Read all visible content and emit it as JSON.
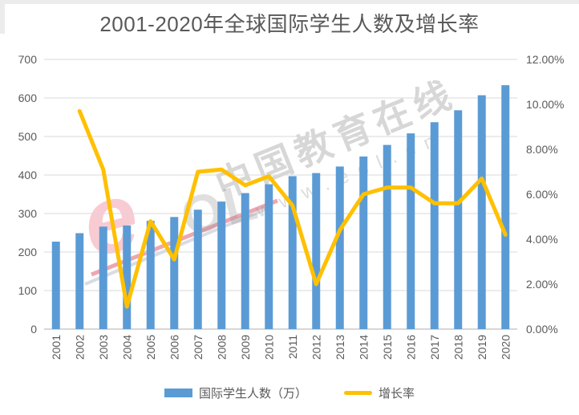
{
  "title": "2001-2020年全球国际学生人数及增长率",
  "watermark": {
    "brand_text": "中国教育在线",
    "url_text": "www.eol.cn",
    "logo_text_primary": "e",
    "logo_text_secondary": "OL"
  },
  "colors": {
    "bar": "#5B9BD5",
    "line": "#FFC000",
    "grid": "#D9D9D9",
    "axis_line": "#BFBFBF",
    "axis_text": "#595959",
    "title_text": "#595959"
  },
  "chart_data": {
    "type": "bar",
    "subtype": "combo-bar-line",
    "title": "2001-2020年全球国际学生人数及增长率",
    "categories": [
      "2001",
      "2002",
      "2003",
      "2004",
      "2005",
      "2006",
      "2007",
      "2008",
      "2009",
      "2010",
      "2011",
      "2012",
      "2013",
      "2014",
      "2015",
      "2016",
      "2017",
      "2018",
      "2019",
      "2020"
    ],
    "series": [
      {
        "name": "国际学生人数（万）",
        "type": "bar",
        "axis": "left",
        "color": "#5B9BD5",
        "values": [
          227,
          249,
          266,
          269,
          281,
          291,
          310,
          331,
          353,
          376,
          397,
          405,
          422,
          448,
          478,
          508,
          537,
          568,
          607,
          633
        ]
      },
      {
        "name": "增长率",
        "type": "line",
        "axis": "right",
        "color": "#FFC000",
        "unit": "%",
        "values": [
          null,
          9.7,
          7.1,
          1.0,
          4.8,
          3.1,
          7.0,
          7.1,
          6.4,
          6.8,
          5.5,
          2.0,
          4.4,
          6.0,
          6.3,
          6.3,
          5.6,
          5.6,
          6.7,
          4.2
        ]
      }
    ],
    "left_axis": {
      "min": 0,
      "max": 700,
      "step": 100,
      "ticks": [
        "0",
        "100",
        "200",
        "300",
        "400",
        "500",
        "600",
        "700"
      ]
    },
    "right_axis": {
      "min": 0,
      "max": 12,
      "step": 2,
      "ticks": [
        "0.00%",
        "2.00%",
        "4.00%",
        "6.00%",
        "8.00%",
        "10.00%",
        "12.00%"
      ]
    },
    "grid": true,
    "legend_position": "bottom"
  }
}
